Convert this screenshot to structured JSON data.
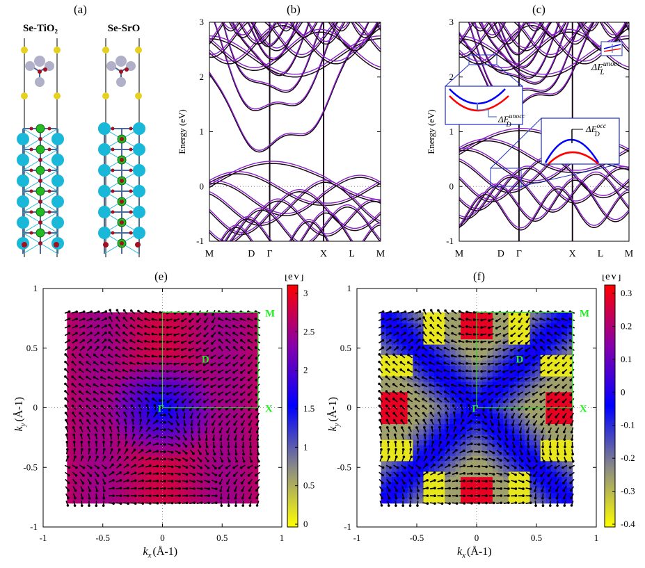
{
  "panel_labels": {
    "a": "(a)",
    "b": "(b)",
    "c": "(c)",
    "e": "(e)",
    "f": "(f)"
  },
  "structures": {
    "left_title": "Se-TiO₂",
    "right_title": "Se-SrO",
    "colors": {
      "Se": "#e6d020",
      "Ti": "#b0b0c8",
      "O": "#a01020",
      "Sr": "#19b8d8",
      "green": "#22bb22",
      "bond": "#4a6a9a"
    }
  },
  "band_plots": {
    "ylabel": "Energy (eV)",
    "yticks": [
      "-1",
      "0",
      "1",
      "2",
      "3"
    ],
    "kpoints": [
      "M",
      "D",
      "Γ",
      "X",
      "L",
      "M"
    ],
    "colors": {
      "black": "#1a0a1a",
      "purple": "#8a20c8"
    },
    "insets": {
      "dEunocc_L": {
        "base": "ΔE",
        "sub": "L",
        "sup": "unocc"
      },
      "dEunocc_D": {
        "base": "ΔE",
        "sub": "D",
        "sup": "unocc"
      },
      "dEocc_D": {
        "base": "ΔE",
        "sub": "D",
        "sup": "occ"
      }
    }
  },
  "spin_maps": {
    "xlabel_base": "k",
    "xlabel_sub": "x",
    "xlabel_unit": "(Å-1)",
    "ylabel_base": "k",
    "ylabel_sub": "y",
    "ylabel_unit": "(Å-1)",
    "xticks": [
      "-1",
      "-0.5",
      "0",
      "0.5",
      "1"
    ],
    "yticks": [
      "1",
      "0.5",
      "0",
      "-0.5",
      "-1"
    ],
    "point_labels": {
      "M": "M",
      "D": "D",
      "G": "Γ",
      "X": "X"
    },
    "cbar_unit": "[eV]",
    "cbar_e_ticks": [
      "3",
      "2.5",
      "2",
      "1.5",
      "1",
      "0.5",
      "0"
    ],
    "cbar_f_ticks": [
      "0.3",
      "0.2",
      "0.1",
      "0",
      "-0.1",
      "-0.2",
      "-0.3",
      "-0.4"
    ],
    "colormap": [
      "#ffff00",
      "#888888",
      "#0000ff",
      "#8800aa",
      "#ff0000"
    ]
  }
}
